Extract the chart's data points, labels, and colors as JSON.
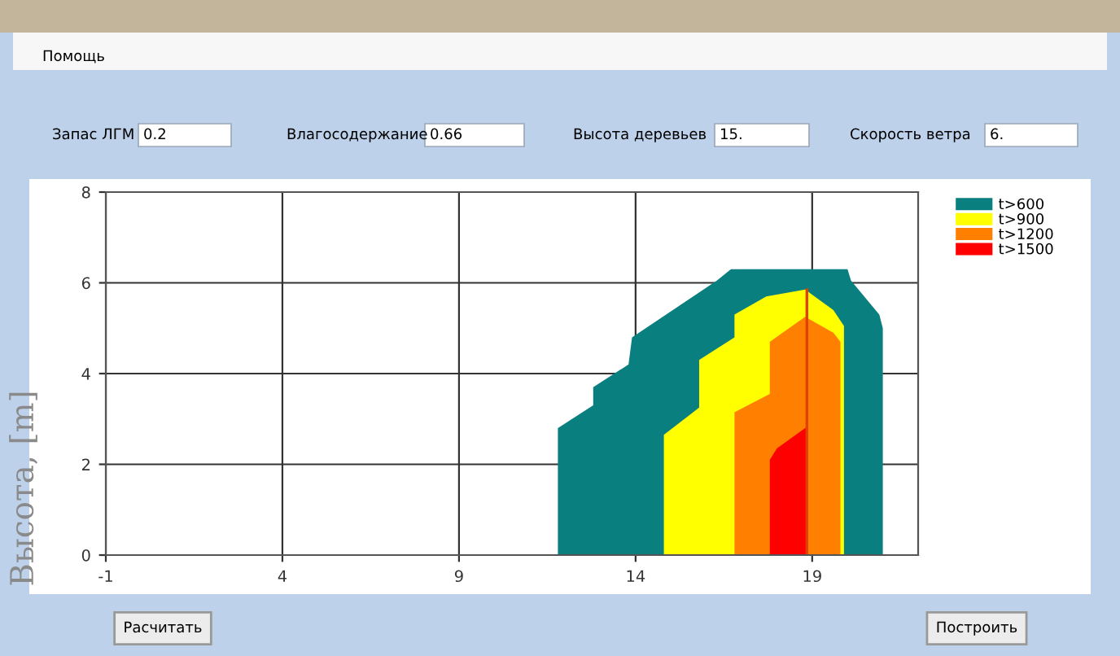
{
  "chart_data": {
    "type": "area",
    "ylabel": "Высота, [m]",
    "xlim": [
      -1,
      22
    ],
    "xticks": [
      -1,
      4,
      9,
      14,
      19
    ],
    "ylim": [
      0,
      8
    ],
    "yticks": [
      0,
      2,
      4,
      6,
      8
    ],
    "grid": true,
    "legend": "top right",
    "series": [
      {
        "name": "t>600",
        "color": "#0a7f7f",
        "x": [
          11.8,
          11.8,
          12.8,
          12.8,
          13.8,
          13.9,
          16.3,
          16.7,
          20.0,
          20.1,
          20.9,
          21.0,
          21.0
        ],
        "values": [
          0,
          2.8,
          3.3,
          3.7,
          4.2,
          4.8,
          6.05,
          6.3,
          6.3,
          6.05,
          5.3,
          5.0,
          0
        ]
      },
      {
        "name": "t>900",
        "color": "#ffff00",
        "x": [
          14.8,
          14.8,
          15.8,
          15.8,
          16.8,
          16.8,
          17.7,
          18.8,
          19.6,
          19.9,
          19.9
        ],
        "values": [
          0,
          2.65,
          3.25,
          4.3,
          4.8,
          5.3,
          5.7,
          5.85,
          5.4,
          5.05,
          0
        ]
      },
      {
        "name": "t>1200",
        "color": "#ff8000",
        "x": [
          16.8,
          16.8,
          17.8,
          17.8,
          18.8,
          19.6,
          19.8,
          19.8
        ],
        "values": [
          0,
          3.15,
          3.55,
          4.7,
          5.25,
          4.9,
          4.7,
          0
        ]
      },
      {
        "name": "t>1500",
        "color": "#ff0000",
        "x": [
          17.8,
          17.8,
          18.0,
          18.8,
          18.85,
          18.85
        ],
        "values": [
          0,
          2.1,
          2.35,
          2.8,
          2.8,
          0
        ]
      },
      {
        "type": "line",
        "color": "#e04000",
        "x": [
          18.85,
          18.85
        ],
        "values": [
          0,
          5.85
        ]
      }
    ],
    "annotations": [
      "Помощь",
      "Запас ЛГМ",
      "0.2",
      "Влагосодержание",
      "0.66",
      "Высота деревьев",
      "15.",
      "Скорость ветра",
      "6.",
      "Расчитать",
      "Построить"
    ]
  }
}
